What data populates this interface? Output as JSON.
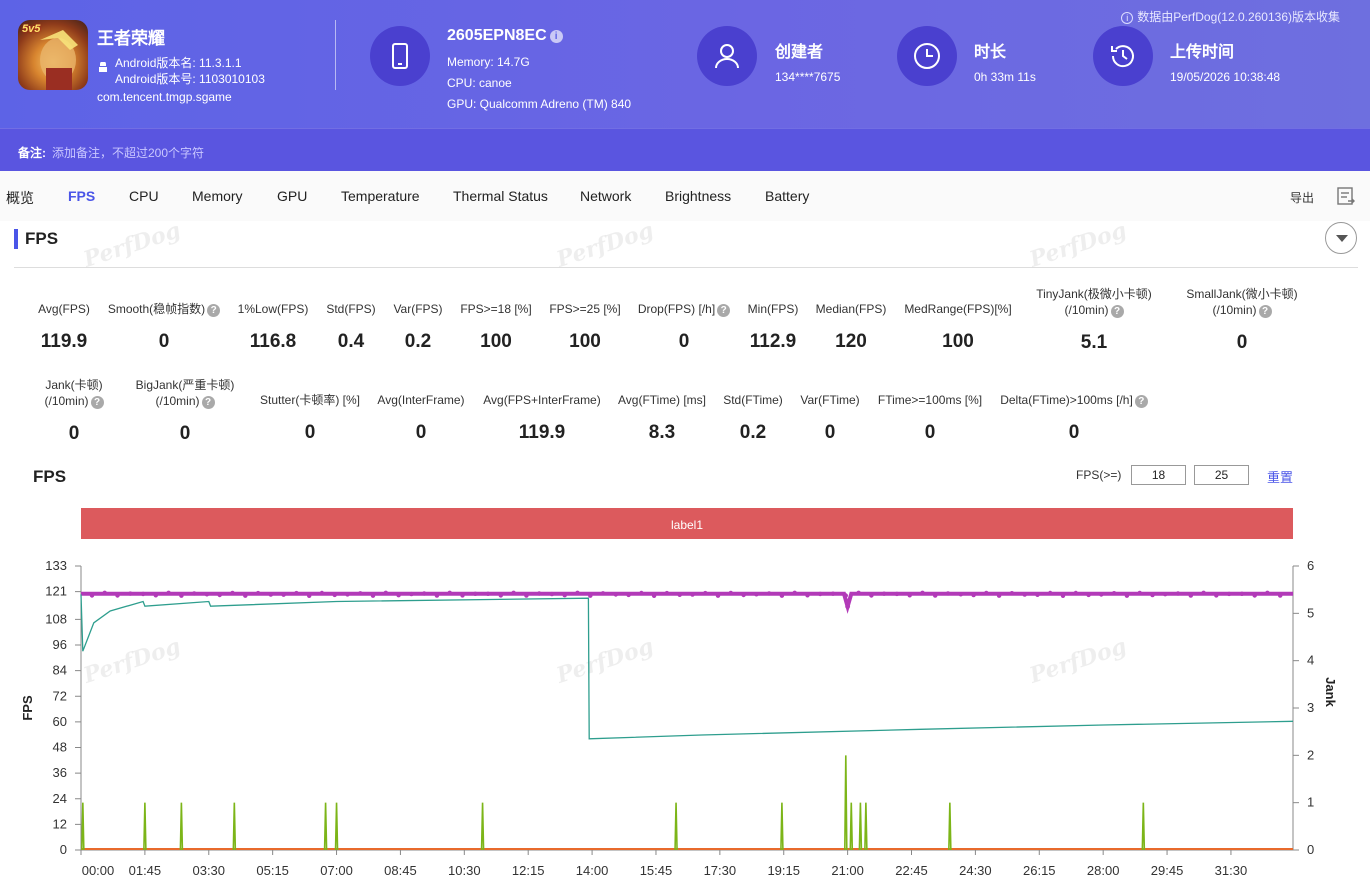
{
  "header": {
    "app_name": "王者荣耀",
    "app_badge": "5v5",
    "android_version_name": "Android版本名: 11.3.1.1",
    "android_version_code": "Android版本号: 1103010103",
    "package": "com.tencent.tmgp.sgame",
    "device": {
      "name": "2605EPN8EC",
      "memory": "Memory: 14.7G",
      "cpu": "CPU: canoe",
      "gpu": "GPU: Qualcomm Adreno (TM) 840"
    },
    "creator": {
      "label": "创建者",
      "value": "134****7675"
    },
    "duration": {
      "label": "时长",
      "value": "0h 33m 11s"
    },
    "upload": {
      "label": "上传时间",
      "value": "19/05/2026 10:38:48"
    },
    "source_note": "数据由PerfDog(12.0.260136)版本收集",
    "notes_label": "备注:",
    "notes_placeholder": "添加备注，不超过200个字符"
  },
  "tabs": [
    "概览",
    "FPS",
    "CPU",
    "Memory",
    "GPU",
    "Temperature",
    "Thermal Status",
    "Network",
    "Brightness",
    "Battery"
  ],
  "active_tab": "FPS",
  "export_label": "导出",
  "section_title": "FPS",
  "watermark": "PerfDog",
  "stats_row1": [
    {
      "label": "Avg(FPS)",
      "value": "119.9"
    },
    {
      "label": "Smooth(稳帧指数)",
      "value": "0",
      "help": true
    },
    {
      "label": "1%Low(FPS)",
      "value": "116.8"
    },
    {
      "label": "Std(FPS)",
      "value": "0.4"
    },
    {
      "label": "Var(FPS)",
      "value": "0.2"
    },
    {
      "label": "FPS>=18 [%]",
      "value": "100"
    },
    {
      "label": "FPS>=25 [%]",
      "value": "100"
    },
    {
      "label": "Drop(FPS) [/h]",
      "value": "0",
      "help": true
    },
    {
      "label": "Min(FPS)",
      "value": "112.9"
    },
    {
      "label": "Median(FPS)",
      "value": "120"
    },
    {
      "label": "MedRange(FPS)[%]",
      "value": "100"
    },
    {
      "label": "TinyJank(极微小卡顿)",
      "label2": "(/10min)",
      "value": "5.1",
      "help": true
    },
    {
      "label": "SmallJank(微小卡顿)",
      "label2": "(/10min)",
      "value": "0",
      "help": true
    }
  ],
  "stats_row2": [
    {
      "label": "Jank(卡顿)",
      "label2": "(/10min)",
      "value": "0",
      "help": true
    },
    {
      "label": "BigJank(严重卡顿)",
      "label2": "(/10min)",
      "value": "0",
      "help": true
    },
    {
      "label": "Stutter(卡顿率) [%]",
      "value": "0"
    },
    {
      "label": "Avg(InterFrame)",
      "value": "0"
    },
    {
      "label": "Avg(FPS+InterFrame)",
      "value": "119.9"
    },
    {
      "label": "Avg(FTime) [ms]",
      "value": "8.3"
    },
    {
      "label": "Std(FTime)",
      "value": "0.2"
    },
    {
      "label": "Var(FTime)",
      "value": "0"
    },
    {
      "label": "FTime>=100ms [%]",
      "value": "0"
    },
    {
      "label": "Delta(FTime)>100ms [/h]",
      "value": "0",
      "help": true
    }
  ],
  "chart_header": {
    "title": "FPS",
    "threshold_label": "FPS(>=)",
    "threshold1": "18",
    "threshold2": "25",
    "reset_label": "重置"
  },
  "chart_data": {
    "type": "line",
    "band_label": "label1",
    "ylabel": "FPS",
    "y2label": "Jank",
    "y_ticks": [
      0,
      12,
      24,
      36,
      48,
      60,
      72,
      84,
      96,
      108,
      121,
      133
    ],
    "y2_ticks": [
      0,
      1,
      2,
      3,
      4,
      5,
      6
    ],
    "ylim": [
      0,
      133
    ],
    "y2lim": [
      0,
      6
    ],
    "x_ticks": [
      "00:00",
      "01:45",
      "03:30",
      "05:15",
      "07:00",
      "08:45",
      "10:30",
      "12:15",
      "14:00",
      "15:45",
      "17:30",
      "19:15",
      "21:00",
      "22:45",
      "24:30",
      "26:15",
      "28:00",
      "29:45",
      "31:30"
    ],
    "x_minutes_range": [
      0,
      33.2
    ],
    "colors": {
      "fps": "#b23ab8",
      "battery": "#2e9e8e",
      "jank": "#7cb518",
      "baseline": "#e86a2c",
      "band": "#dc5a5d"
    },
    "series": [
      {
        "key": "fps",
        "values_minutes": [
          [
            0,
            120
          ],
          [
            1.8,
            120
          ],
          [
            3.5,
            120
          ],
          [
            6.8,
            120
          ],
          [
            10,
            120
          ],
          [
            20.9,
            120
          ],
          [
            21,
            114
          ],
          [
            21.1,
            120
          ],
          [
            33.2,
            120
          ]
        ]
      },
      {
        "key": "battery",
        "values_minutes": [
          [
            0,
            5.4
          ],
          [
            0.05,
            4.2
          ],
          [
            0.2,
            4.5
          ],
          [
            0.35,
            4.8
          ],
          [
            0.8,
            5.05
          ],
          [
            1.7,
            5.25
          ],
          [
            1.75,
            5.15
          ],
          [
            3.5,
            5.25
          ],
          [
            3.55,
            5.15
          ],
          [
            7,
            5.25
          ],
          [
            13.9,
            5.32
          ],
          [
            13.92,
            2.35
          ],
          [
            17,
            2.43
          ],
          [
            23,
            2.55
          ],
          [
            28,
            2.64
          ],
          [
            33.2,
            2.72
          ]
        ]
      },
      {
        "key": "jank",
        "spikes": [
          [
            0.05,
            1
          ],
          [
            1.75,
            1
          ],
          [
            2.75,
            1
          ],
          [
            4.2,
            1
          ],
          [
            6.7,
            1
          ],
          [
            7,
            1
          ],
          [
            11,
            1
          ],
          [
            16.3,
            1
          ],
          [
            19.2,
            1
          ],
          [
            20.95,
            2
          ],
          [
            21.1,
            1
          ],
          [
            21.35,
            1
          ],
          [
            21.5,
            1
          ],
          [
            23.8,
            1
          ],
          [
            29.1,
            1
          ]
        ]
      }
    ]
  }
}
